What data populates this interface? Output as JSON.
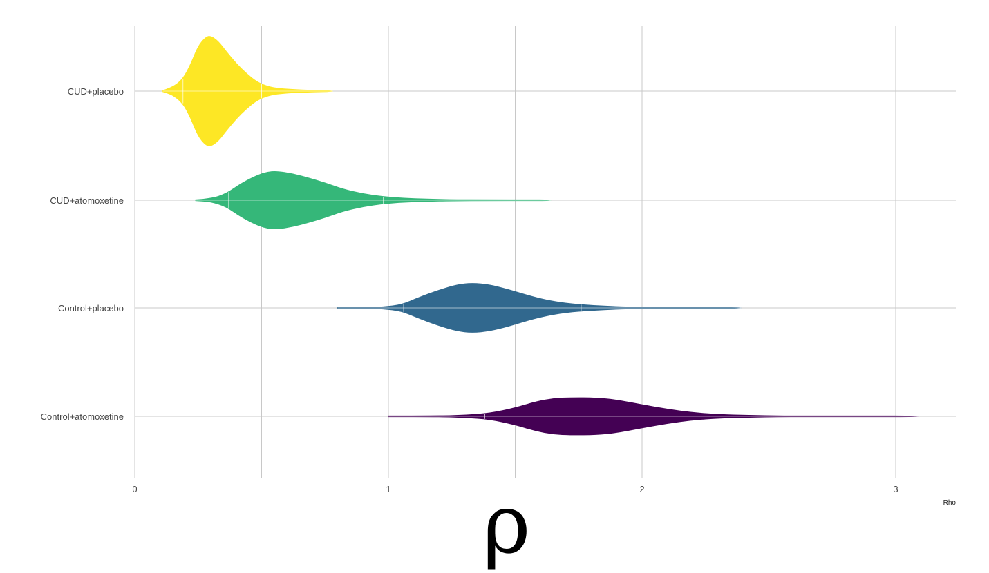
{
  "chart_data": {
    "type": "violin",
    "orientation": "horizontal",
    "title": "",
    "xlabel": "Rho",
    "ylabel": "",
    "xlim": [
      0,
      3.25
    ],
    "x_ticks": [
      0,
      1,
      2,
      3
    ],
    "x_tick_labels": [
      "0",
      "1",
      "2",
      "3"
    ],
    "grid": true,
    "legend": "none",
    "categories": [
      "CUD+placebo",
      "CUD+atomoxetine",
      "Control+placebo",
      "Control+atomoxetine"
    ],
    "series": [
      {
        "category": "CUD+placebo",
        "color": "#fde725",
        "min": 0.11,
        "max": 0.78,
        "median": 0.29,
        "quantile_lines": [
          0.19,
          0.5
        ],
        "density": [
          [
            0.11,
            0.01
          ],
          [
            0.15,
            0.07
          ],
          [
            0.19,
            0.22
          ],
          [
            0.22,
            0.48
          ],
          [
            0.25,
            0.82
          ],
          [
            0.28,
            0.98
          ],
          [
            0.3,
            1.0
          ],
          [
            0.33,
            0.9
          ],
          [
            0.36,
            0.72
          ],
          [
            0.4,
            0.5
          ],
          [
            0.44,
            0.32
          ],
          [
            0.48,
            0.17
          ],
          [
            0.52,
            0.09
          ],
          [
            0.56,
            0.05
          ],
          [
            0.62,
            0.03
          ],
          [
            0.7,
            0.015
          ],
          [
            0.78,
            0.003
          ]
        ]
      },
      {
        "category": "CUD+atomoxetine",
        "color": "#35b779",
        "min": 0.24,
        "max": 1.64,
        "median": 0.55,
        "quantile_lines": [
          0.37,
          0.98
        ],
        "density": [
          [
            0.24,
            0.005
          ],
          [
            0.3,
            0.05
          ],
          [
            0.36,
            0.22
          ],
          [
            0.42,
            0.58
          ],
          [
            0.48,
            0.85
          ],
          [
            0.52,
            0.97
          ],
          [
            0.56,
            1.0
          ],
          [
            0.62,
            0.92
          ],
          [
            0.68,
            0.78
          ],
          [
            0.75,
            0.6
          ],
          [
            0.82,
            0.38
          ],
          [
            0.9,
            0.22
          ],
          [
            0.98,
            0.12
          ],
          [
            1.06,
            0.07
          ],
          [
            1.15,
            0.04
          ],
          [
            1.25,
            0.02
          ],
          [
            1.4,
            0.012
          ],
          [
            1.55,
            0.006
          ],
          [
            1.64,
            0.002
          ]
        ]
      },
      {
        "category": "Control+placebo",
        "color": "#31688e",
        "min": 0.8,
        "max": 2.39,
        "median": 1.34,
        "quantile_lines": [
          1.06,
          1.76
        ],
        "density": [
          [
            0.8,
            0.003
          ],
          [
            0.9,
            0.01
          ],
          [
            0.98,
            0.04
          ],
          [
            1.05,
            0.12
          ],
          [
            1.12,
            0.42
          ],
          [
            1.2,
            0.72
          ],
          [
            1.27,
            0.93
          ],
          [
            1.33,
            1.0
          ],
          [
            1.4,
            0.93
          ],
          [
            1.47,
            0.75
          ],
          [
            1.55,
            0.5
          ],
          [
            1.62,
            0.32
          ],
          [
            1.7,
            0.18
          ],
          [
            1.8,
            0.1
          ],
          [
            1.9,
            0.05
          ],
          [
            2.0,
            0.03
          ],
          [
            2.12,
            0.02
          ],
          [
            2.25,
            0.015
          ],
          [
            2.39,
            0.005
          ]
        ]
      },
      {
        "category": "Control+atomoxetine",
        "color": "#440154",
        "min": 1.0,
        "max": 3.09,
        "median": 1.76,
        "quantile_lines": [
          1.38,
          2.5
        ],
        "density": [
          [
            1.0,
            0.005
          ],
          [
            1.2,
            0.02
          ],
          [
            1.3,
            0.06
          ],
          [
            1.4,
            0.16
          ],
          [
            1.5,
            0.45
          ],
          [
            1.58,
            0.78
          ],
          [
            1.65,
            0.96
          ],
          [
            1.72,
            1.0
          ],
          [
            1.82,
            0.99
          ],
          [
            1.9,
            0.88
          ],
          [
            2.0,
            0.62
          ],
          [
            2.1,
            0.38
          ],
          [
            2.2,
            0.2
          ],
          [
            2.3,
            0.1
          ],
          [
            2.42,
            0.05
          ],
          [
            2.55,
            0.02
          ],
          [
            2.7,
            0.012
          ],
          [
            2.9,
            0.008
          ],
          [
            3.09,
            0.004
          ]
        ]
      }
    ]
  },
  "symbol_text": "ρ"
}
